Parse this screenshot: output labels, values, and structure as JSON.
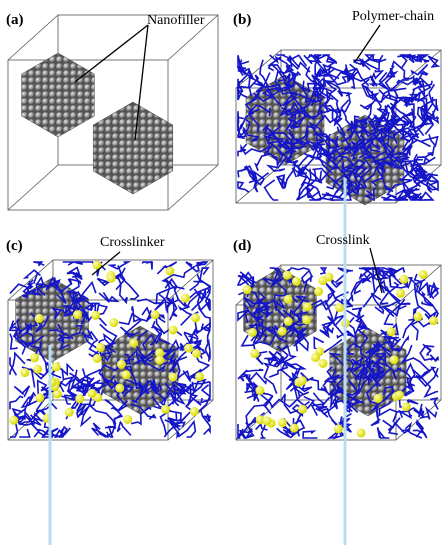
{
  "panels": [
    {
      "label": "(a)",
      "annotation": "Nanofiller"
    },
    {
      "label": "(b)",
      "annotation": "Polymer-chain"
    },
    {
      "label": "(c)",
      "annotation": "Crosslinker"
    },
    {
      "label": "(d)",
      "annotation": "Crosslink"
    }
  ]
}
